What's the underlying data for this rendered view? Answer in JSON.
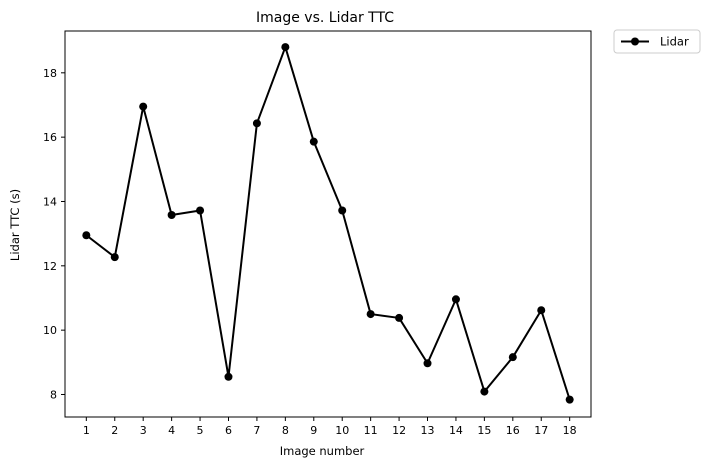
{
  "chart_data": {
    "type": "line",
    "title": "Image vs. Lidar TTC",
    "xlabel": "Image number",
    "ylabel": "Lidar TTC (s)",
    "x": [
      1,
      2,
      3,
      4,
      5,
      6,
      7,
      8,
      9,
      10,
      11,
      12,
      13,
      14,
      15,
      16,
      17,
      18
    ],
    "xticks": [
      "1",
      "2",
      "3",
      "4",
      "5",
      "6",
      "7",
      "8",
      "9",
      "10",
      "11",
      "12",
      "13",
      "14",
      "15",
      "16",
      "17",
      "18"
    ],
    "yticks": [
      "8",
      "10",
      "12",
      "14",
      "16",
      "18"
    ],
    "ylim": [
      7.3,
      19.3
    ],
    "xlim": [
      0.25,
      18.75
    ],
    "grid": false,
    "legend": "outside-top-right",
    "series": [
      {
        "name": "Lidar",
        "color": "#000000",
        "marker": "circle",
        "values": [
          12.95,
          12.27,
          16.95,
          13.58,
          13.72,
          8.55,
          16.43,
          18.8,
          15.86,
          13.72,
          10.5,
          10.38,
          8.97,
          10.96,
          8.09,
          9.16,
          10.62,
          7.84
        ]
      }
    ]
  }
}
